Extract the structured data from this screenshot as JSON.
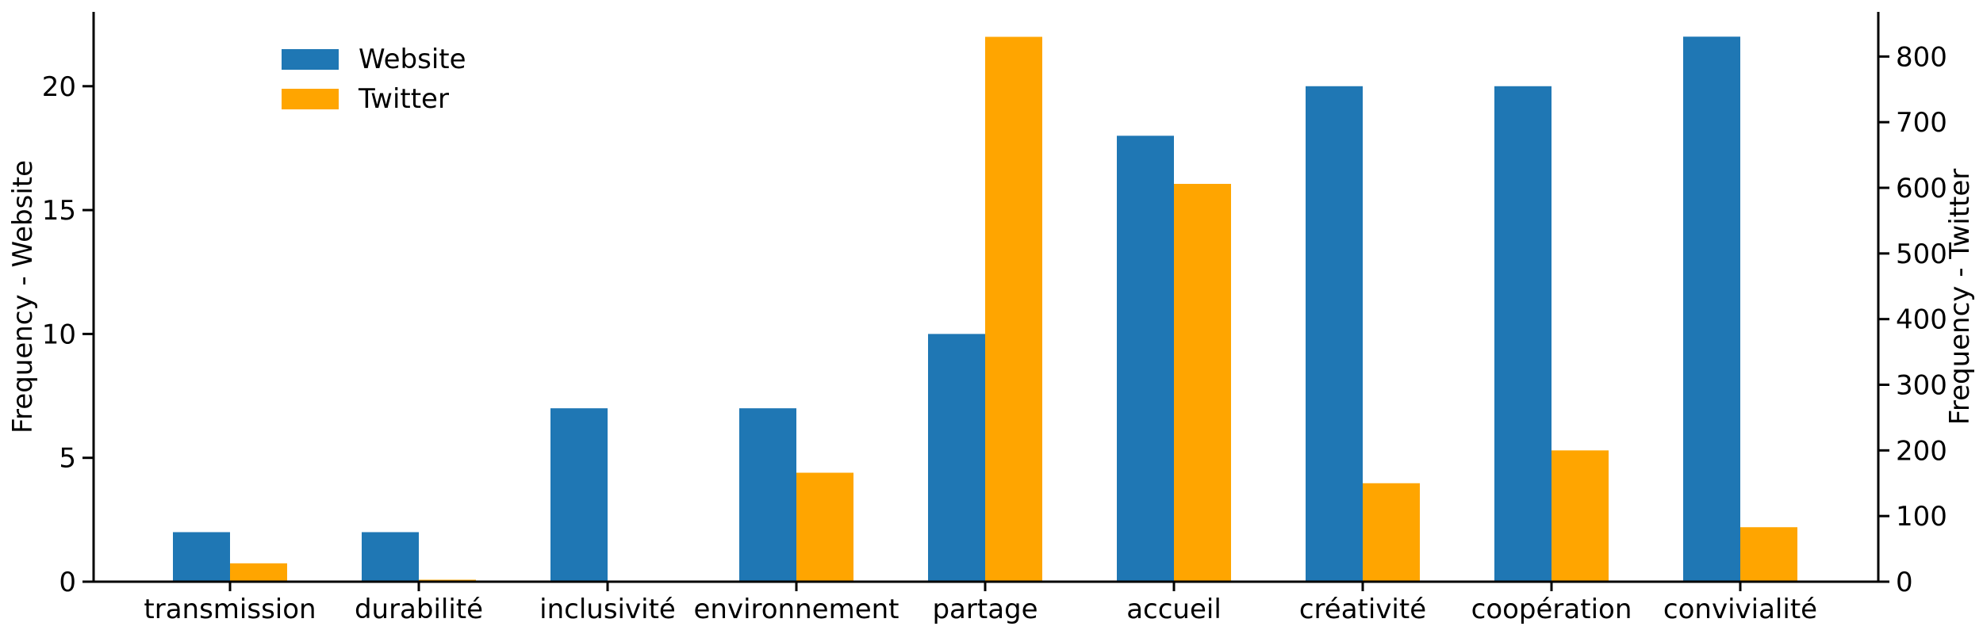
{
  "chart_data": {
    "type": "bar",
    "categories": [
      "transmission",
      "durabilité",
      "inclusivité",
      "environnement",
      "partage",
      "accueil",
      "créativité",
      "coopération",
      "convivialité"
    ],
    "series": [
      {
        "name": "Website",
        "axis": "left",
        "color": "#1f77b4",
        "values": [
          2,
          2,
          7,
          7,
          10,
          18,
          20,
          20,
          22
        ]
      },
      {
        "name": "Twitter",
        "axis": "right",
        "color": "#ffa500",
        "values": [
          28,
          3,
          0,
          166,
          830,
          606,
          150,
          200,
          83
        ]
      }
    ],
    "ylabel_left": "Frequency - Website",
    "ylabel_right": "Frequency - Twitter",
    "ylim_left": [
      0,
      23
    ],
    "ylim_right": [
      0,
      868
    ],
    "yticks_left": [
      0,
      5,
      10,
      15,
      20
    ],
    "yticks_right": [
      0,
      100,
      200,
      300,
      400,
      500,
      600,
      700,
      800
    ],
    "legend": {
      "placement": "top-left",
      "entries": [
        "Website",
        "Twitter"
      ]
    },
    "grid": false
  }
}
